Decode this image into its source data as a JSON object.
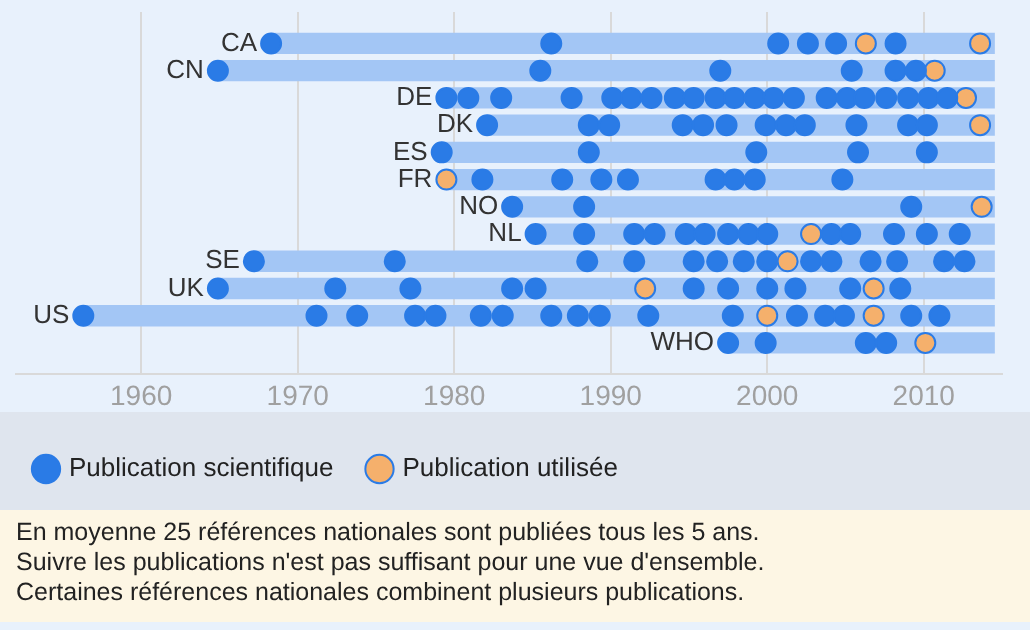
{
  "chart_data": {
    "type": "scatter",
    "orientation": "horizontal",
    "categories": [
      "CA",
      "CN",
      "DE",
      "DK",
      "ES",
      "FR",
      "NO",
      "NL",
      "SE",
      "UK",
      "US",
      "WHO"
    ],
    "xlim": [
      1952,
      2015
    ],
    "xticks": [
      1960,
      1970,
      1980,
      1990,
      2000,
      2010
    ],
    "grid": "x",
    "legend": "bottom",
    "tick_labels": "x",
    "marker": "circle",
    "annotations": [
      "En moyenne 25 références nationales sont publiées tous les 5 ans.",
      "Suivre les publications n'est pas suffisant pour une vue d'ensemble.",
      "Certaines références nationales combinent plusieurs publications."
    ],
    "series": [
      {
        "type": "bar",
        "color": "#a3c6f5",
        "base": [
          1968.3,
          1964.9,
          1979.5,
          1982.1,
          1979.2,
          1979.5,
          1983.7,
          1985.2,
          1967.2,
          1964.9,
          1956.3,
          1997.5
        ],
        "values": [
          46.2,
          49.6,
          35.0,
          32.4,
          35.3,
          35.0,
          30.8,
          29.3,
          47.3,
          49.6,
          58.2,
          17.0
        ]
      },
      {
        "name": "Publication scientifique",
        "color": "#2a7be6",
        "x": [
          "CA",
          "CA",
          "CA",
          "CA",
          "CA",
          "CA",
          "CN",
          "CN",
          "CN",
          "CN",
          "CN",
          "CN",
          "DE",
          "DE",
          "DE",
          "DE",
          "DE",
          "DE",
          "DE",
          "DE",
          "DE",
          "DE",
          "DE",
          "DE",
          "DE",
          "DE",
          "DE",
          "DE",
          "DE",
          "DE",
          "DE",
          "DE",
          "DE",
          "DK",
          "DK",
          "DK",
          "DK",
          "DK",
          "DK",
          "DK",
          "DK",
          "DK",
          "DK",
          "DK",
          "DK",
          "ES",
          "ES",
          "ES",
          "ES",
          "ES",
          "FR",
          "FR",
          "FR",
          "FR",
          "FR",
          "FR",
          "FR",
          "FR",
          "NO",
          "NO",
          "NO",
          "NL",
          "NL",
          "NL",
          "NL",
          "NL",
          "NL",
          "NL",
          "NL",
          "NL",
          "NL",
          "NL",
          "NL",
          "NL",
          "NL",
          "SE",
          "SE",
          "SE",
          "SE",
          "SE",
          "SE",
          "SE",
          "SE",
          "SE",
          "SE",
          "SE",
          "SE",
          "SE",
          "SE",
          "UK",
          "UK",
          "UK",
          "UK",
          "UK",
          "UK",
          "UK",
          "UK",
          "UK",
          "UK",
          "UK",
          "US",
          "US",
          "US",
          "US",
          "US",
          "US",
          "US",
          "US",
          "US",
          "US",
          "US",
          "US",
          "US",
          "US",
          "US",
          "US",
          "US",
          "WHO",
          "WHO",
          "WHO",
          "WHO"
        ],
        "values": [
          1968.3,
          1986.2,
          2000.7,
          2002.6,
          2004.4,
          2008.2,
          1964.9,
          1985.5,
          1997.0,
          2005.4,
          2008.2,
          2009.5,
          1979.5,
          1980.9,
          1983.0,
          1987.5,
          1990.1,
          1991.3,
          1992.6,
          1994.1,
          1995.3,
          1996.7,
          1997.9,
          1999.2,
          2000.4,
          2001.7,
          2003.8,
          2005.1,
          2006.2,
          2007.6,
          2009.0,
          2010.3,
          2011.5,
          1982.1,
          1988.6,
          1989.9,
          1994.6,
          1995.9,
          1997.4,
          1999.9,
          2001.2,
          2002.4,
          2005.7,
          2009.0,
          2010.2,
          1979.2,
          1988.6,
          1999.3,
          2005.8,
          2010.2,
          1981.8,
          1986.9,
          1989.4,
          1991.1,
          1996.7,
          1997.9,
          1999.2,
          2004.8,
          1983.7,
          1988.3,
          2009.2,
          1985.2,
          1988.3,
          1991.5,
          1992.8,
          1994.8,
          1996.0,
          1997.5,
          1998.8,
          2000.0,
          2004.1,
          2005.3,
          2008.1,
          2010.2,
          2012.3,
          1967.2,
          1976.2,
          1988.5,
          1991.5,
          1995.3,
          1996.8,
          1998.5,
          2000.0,
          2002.8,
          2004.1,
          2006.6,
          2008.3,
          2011.3,
          2012.6,
          1964.9,
          1972.4,
          1977.2,
          1983.7,
          1985.2,
          1995.3,
          1997.5,
          2000.0,
          2001.8,
          2005.3,
          2008.5,
          1956.3,
          1971.2,
          1973.8,
          1977.5,
          1978.8,
          1981.7,
          1983.1,
          1986.2,
          1987.9,
          1989.3,
          1992.4,
          1997.8,
          2001.9,
          2003.7,
          2004.9,
          2009.2,
          2011.0,
          1997.5,
          1999.9,
          2006.3,
          2007.6
        ]
      },
      {
        "name": "Publication utilisée",
        "color": "#f5b06c",
        "x": [
          "CA",
          "CA",
          "CN",
          "DE",
          "DK",
          "FR",
          "NO",
          "NL",
          "SE",
          "UK",
          "UK",
          "US",
          "US",
          "WHO"
        ],
        "values": [
          2006.3,
          2013.6,
          2010.7,
          2012.7,
          2013.6,
          1979.5,
          2013.7,
          2002.8,
          2001.3,
          1992.2,
          2006.8,
          2000.0,
          2006.8,
          2010.1
        ]
      }
    ]
  }
}
